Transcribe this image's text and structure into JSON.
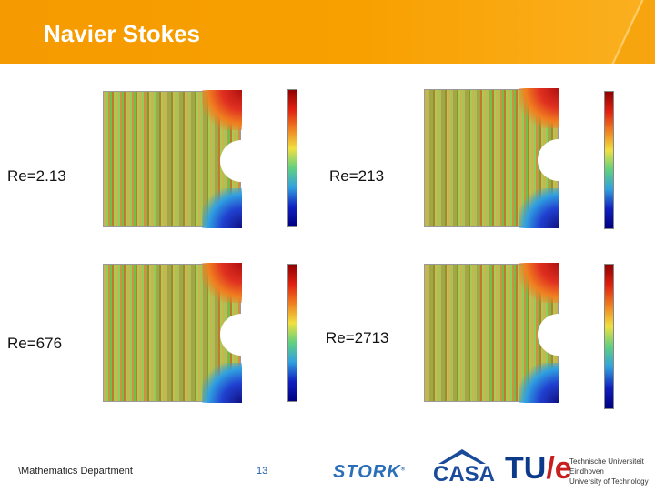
{
  "header": {
    "title": "Navier Stokes"
  },
  "panels": [
    {
      "re_label": "Re=2.13"
    },
    {
      "re_label": "Re=213"
    },
    {
      "re_label": "Re=676"
    },
    {
      "re_label": "Re=2713"
    }
  ],
  "footer": {
    "department": "\\Mathematics Department",
    "page_number": "13"
  },
  "logos": {
    "stork": "STORK",
    "casa": "CASA",
    "tue": "TU",
    "tue_slash": "/e",
    "tue_name": "Technische Universiteit\nEindhoven\nUniversity of Technology"
  },
  "colors": {
    "header": "#f8a000",
    "tue_blue": "#0b3a8a",
    "tue_red": "#c81e1e"
  }
}
